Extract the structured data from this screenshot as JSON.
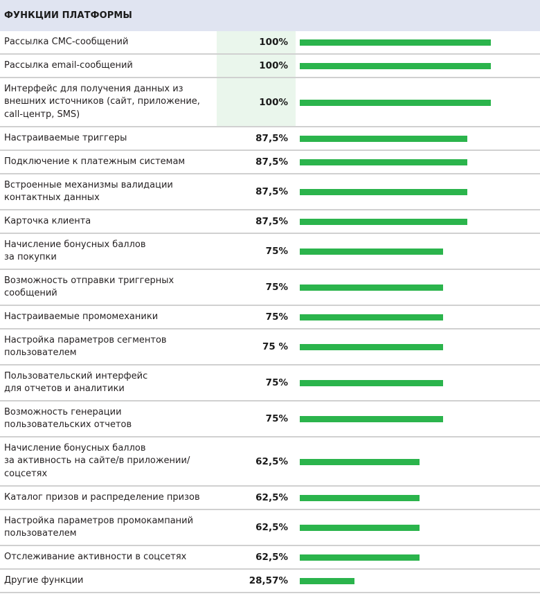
{
  "chart_data": {
    "type": "bar",
    "orientation": "horizontal",
    "title": "ФУНКЦИИ ПЛАТФОРМЫ",
    "xlim": [
      0,
      100
    ],
    "unit": "%",
    "bar_color": "#2bb44c",
    "header_color": "#e0e4f1",
    "highlight_color": "#eaf6ec",
    "categories": [
      "Рассылка СМС-сообщений",
      "Рассылка email-сообщений",
      "Интерфейс для получения данных из\nвнешних источников (сайт, приложение,\ncall-центр, SMS)",
      "Настраиваемые триггеры",
      "Подключение к платежным системам",
      "Встроенные механизмы валидации\nконтактных данных",
      "Карточка клиента",
      "Начисление бонусных баллов\nза покупки",
      "Возможность отправки триггерных\nсообщений",
      "Настраиваемые промомеханики",
      "Настройка параметров сегментов\nпользователем",
      "Пользовательский интерфейс\nдля отчетов и аналитики",
      "Возможность генерации\nпользовательских отчетов",
      "Начисление бонусных баллов\nза активность на сайте/в приложении/\nсоцсетях",
      "Каталог призов и распределение призов",
      "Настройка параметров промокампаний\nпользователем",
      "Отслеживание активности в соцсетях",
      "Другие функции"
    ],
    "values": [
      100,
      100,
      100,
      87.5,
      87.5,
      87.5,
      87.5,
      75,
      75,
      75,
      75,
      75,
      75,
      62.5,
      62.5,
      62.5,
      62.5,
      28.57
    ],
    "value_labels": [
      "100%",
      "100%",
      "100%",
      "87,5%",
      "87,5%",
      "87,5%",
      "87,5%",
      "75%",
      "75%",
      "75%",
      "75 %",
      "75%",
      "75%",
      "62,5%",
      "62,5%",
      "62,5%",
      "62,5%",
      "28,57%"
    ],
    "highlighted_rows": [
      0,
      1,
      2
    ]
  }
}
